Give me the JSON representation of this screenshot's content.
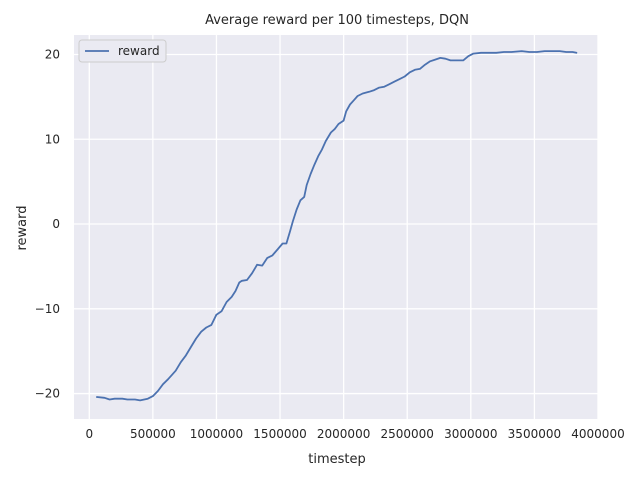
{
  "chart_data": {
    "type": "line",
    "title": "Average reward per 100 timesteps, DQN",
    "xlabel": "timestep",
    "ylabel": "reward",
    "xlim": [
      -120000,
      4000000
    ],
    "ylim": [
      -23,
      22.3
    ],
    "xticks": [
      0,
      500000,
      1000000,
      1500000,
      2000000,
      2500000,
      3000000,
      3500000,
      4000000
    ],
    "xtick_labels": [
      "0",
      "500000",
      "1000000",
      "1500000",
      "2000000",
      "2500000",
      "3000000",
      "3500000",
      "4000000"
    ],
    "yticks": [
      -20,
      -10,
      0,
      10,
      20
    ],
    "ytick_labels": [
      "−20",
      "−10",
      "0",
      "10",
      "20"
    ],
    "grid": true,
    "legend_position": "upper left",
    "series": [
      {
        "name": "reward",
        "color": "#4c72b0",
        "points": [
          [
            60000,
            -20.4
          ],
          [
            120000,
            -20.5
          ],
          [
            160000,
            -20.7
          ],
          [
            200000,
            -20.6
          ],
          [
            260000,
            -20.6
          ],
          [
            300000,
            -20.7
          ],
          [
            360000,
            -20.7
          ],
          [
            400000,
            -20.8
          ],
          [
            460000,
            -20.6
          ],
          [
            500000,
            -20.3
          ],
          [
            540000,
            -19.7
          ],
          [
            580000,
            -18.9
          ],
          [
            620000,
            -18.3
          ],
          [
            680000,
            -17.3
          ],
          [
            720000,
            -16.3
          ],
          [
            760000,
            -15.5
          ],
          [
            800000,
            -14.5
          ],
          [
            840000,
            -13.5
          ],
          [
            880000,
            -12.7
          ],
          [
            920000,
            -12.2
          ],
          [
            960000,
            -11.9
          ],
          [
            1000000,
            -10.7
          ],
          [
            1040000,
            -10.3
          ],
          [
            1080000,
            -9.2
          ],
          [
            1120000,
            -8.6
          ],
          [
            1150000,
            -7.9
          ],
          [
            1180000,
            -6.9
          ],
          [
            1200000,
            -6.7
          ],
          [
            1240000,
            -6.6
          ],
          [
            1280000,
            -5.8
          ],
          [
            1320000,
            -4.8
          ],
          [
            1360000,
            -4.9
          ],
          [
            1400000,
            -4.0
          ],
          [
            1440000,
            -3.7
          ],
          [
            1480000,
            -3.0
          ],
          [
            1520000,
            -2.3
          ],
          [
            1550000,
            -2.3
          ],
          [
            1580000,
            -0.8
          ],
          [
            1600000,
            0.3
          ],
          [
            1630000,
            1.7
          ],
          [
            1660000,
            2.8
          ],
          [
            1690000,
            3.2
          ],
          [
            1710000,
            4.6
          ],
          [
            1740000,
            5.9
          ],
          [
            1770000,
            7.0
          ],
          [
            1800000,
            8.0
          ],
          [
            1830000,
            8.8
          ],
          [
            1860000,
            9.8
          ],
          [
            1900000,
            10.8
          ],
          [
            1930000,
            11.2
          ],
          [
            1960000,
            11.8
          ],
          [
            2000000,
            12.2
          ],
          [
            2020000,
            13.3
          ],
          [
            2050000,
            14.1
          ],
          [
            2080000,
            14.6
          ],
          [
            2110000,
            15.1
          ],
          [
            2150000,
            15.4
          ],
          [
            2200000,
            15.6
          ],
          [
            2240000,
            15.8
          ],
          [
            2280000,
            16.1
          ],
          [
            2320000,
            16.2
          ],
          [
            2360000,
            16.5
          ],
          [
            2400000,
            16.8
          ],
          [
            2440000,
            17.1
          ],
          [
            2480000,
            17.4
          ],
          [
            2520000,
            17.9
          ],
          [
            2560000,
            18.2
          ],
          [
            2600000,
            18.3
          ],
          [
            2640000,
            18.8
          ],
          [
            2680000,
            19.2
          ],
          [
            2720000,
            19.4
          ],
          [
            2760000,
            19.6
          ],
          [
            2800000,
            19.5
          ],
          [
            2840000,
            19.3
          ],
          [
            2880000,
            19.3
          ],
          [
            2940000,
            19.3
          ],
          [
            2980000,
            19.8
          ],
          [
            3020000,
            20.1
          ],
          [
            3080000,
            20.2
          ],
          [
            3150000,
            20.2
          ],
          [
            3200000,
            20.2
          ],
          [
            3260000,
            20.3
          ],
          [
            3320000,
            20.3
          ],
          [
            3400000,
            20.4
          ],
          [
            3460000,
            20.3
          ],
          [
            3520000,
            20.3
          ],
          [
            3580000,
            20.4
          ],
          [
            3640000,
            20.4
          ],
          [
            3700000,
            20.4
          ],
          [
            3750000,
            20.3
          ],
          [
            3800000,
            20.3
          ],
          [
            3830000,
            20.2
          ]
        ]
      }
    ]
  }
}
